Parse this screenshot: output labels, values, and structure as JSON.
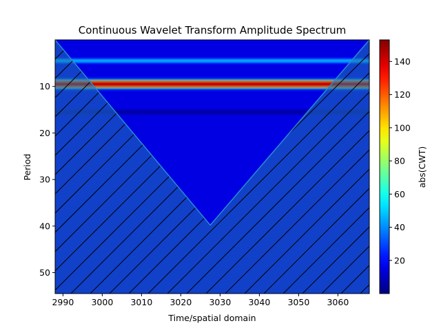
{
  "chart_data": {
    "type": "heatmap",
    "title": "Continuous Wavelet Transform Amplitude Spectrum",
    "xlabel": "Time/spatial domain",
    "ylabel": "Period",
    "xlim": [
      2988,
      3068
    ],
    "ylim": [
      54.5,
      0
    ],
    "x_ticks": [
      2990,
      3000,
      3010,
      3020,
      3030,
      3040,
      3050,
      3060
    ],
    "y_ticks": [
      10,
      20,
      30,
      40,
      50
    ],
    "colorbar": {
      "label": "abs(CWT)",
      "colormap": "jet",
      "range": [
        0,
        153
      ],
      "ticks": [
        20,
        40,
        60,
        80,
        100,
        120,
        140
      ]
    },
    "background_amplitude": 15,
    "bands": [
      {
        "period": 4.5,
        "peak_amplitude": 45
      },
      {
        "period": 9.5,
        "peak_amplitude": 150
      },
      {
        "period": 15.5,
        "peak_amplitude": 6
      }
    ],
    "cone_of_influence": {
      "vertex": {
        "x": 3027.5,
        "period": 39.8
      },
      "left_top": {
        "x": 2988,
        "period": 0
      },
      "right_top": {
        "x": 3068,
        "period": 0
      },
      "hatch": "diagonal",
      "color": "#1f77b4"
    }
  }
}
